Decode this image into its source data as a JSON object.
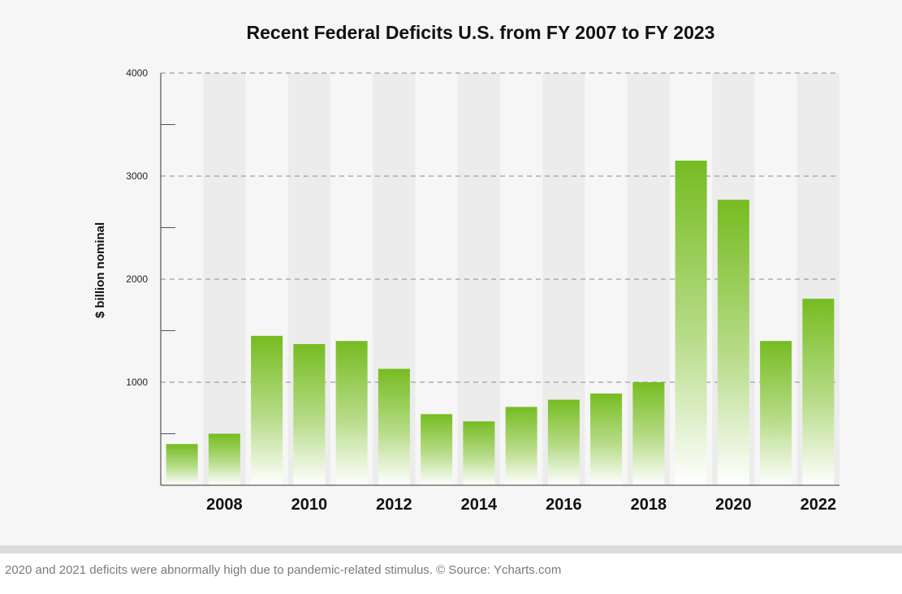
{
  "caption": "2020 and 2021 deficits were abnormally high due to pandemic-related stimulus. ©  Source: Ycharts.com",
  "colors": {
    "bar_top": "#76bc21",
    "bar_bottom": "#ffffff",
    "stripe": "#ececec",
    "background": "#f6f6f6"
  },
  "chart_data": {
    "type": "bar",
    "title": "Recent Federal Deficits U.S. from FY 2007 to FY 2023",
    "xlabel": "",
    "ylabel": "$ billion nominal",
    "ylim": [
      0,
      4000
    ],
    "yticks": [
      0,
      1000,
      2000,
      3000,
      4000
    ],
    "ytick_labels": [
      "1000",
      "2000",
      "3000",
      "4000"
    ],
    "xtick_labels": [
      "2008",
      "2010",
      "2012",
      "2014",
      "2016",
      "2018",
      "2020",
      "2022"
    ],
    "categories": [
      "2007",
      "2008",
      "2009",
      "2010",
      "2011",
      "2012",
      "2013",
      "2014",
      "2015",
      "2016",
      "2017",
      "2018",
      "2019",
      "2020",
      "2021",
      "2022"
    ],
    "values": [
      400,
      500,
      1450,
      1370,
      1400,
      1130,
      690,
      620,
      760,
      830,
      890,
      1000,
      3150,
      2770,
      1400,
      1810
    ],
    "grid": "horizontal dashed at major ticks",
    "legend": "none"
  }
}
